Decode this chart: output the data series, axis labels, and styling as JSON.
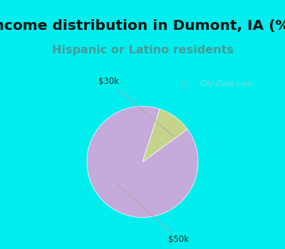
{
  "title": "Income distribution in Dumont, IA (%)",
  "subtitle": "Hispanic or Latino residents",
  "slices": [
    {
      "label": "$50k",
      "value": 90,
      "color": "#C5AADB"
    },
    {
      "label": "$30k",
      "value": 10,
      "color": "#C5D48A"
    }
  ],
  "bg_cyan": "#00EEEE",
  "bg_chart": "#E8F5E8",
  "title_color": "#111111",
  "subtitle_color": "#4A9999",
  "title_fontsize": 14.5,
  "subtitle_fontsize": 11.5,
  "watermark": "City-Data.com",
  "startangle": 72,
  "label_color": "#333333",
  "label_fontsize": 8.5
}
